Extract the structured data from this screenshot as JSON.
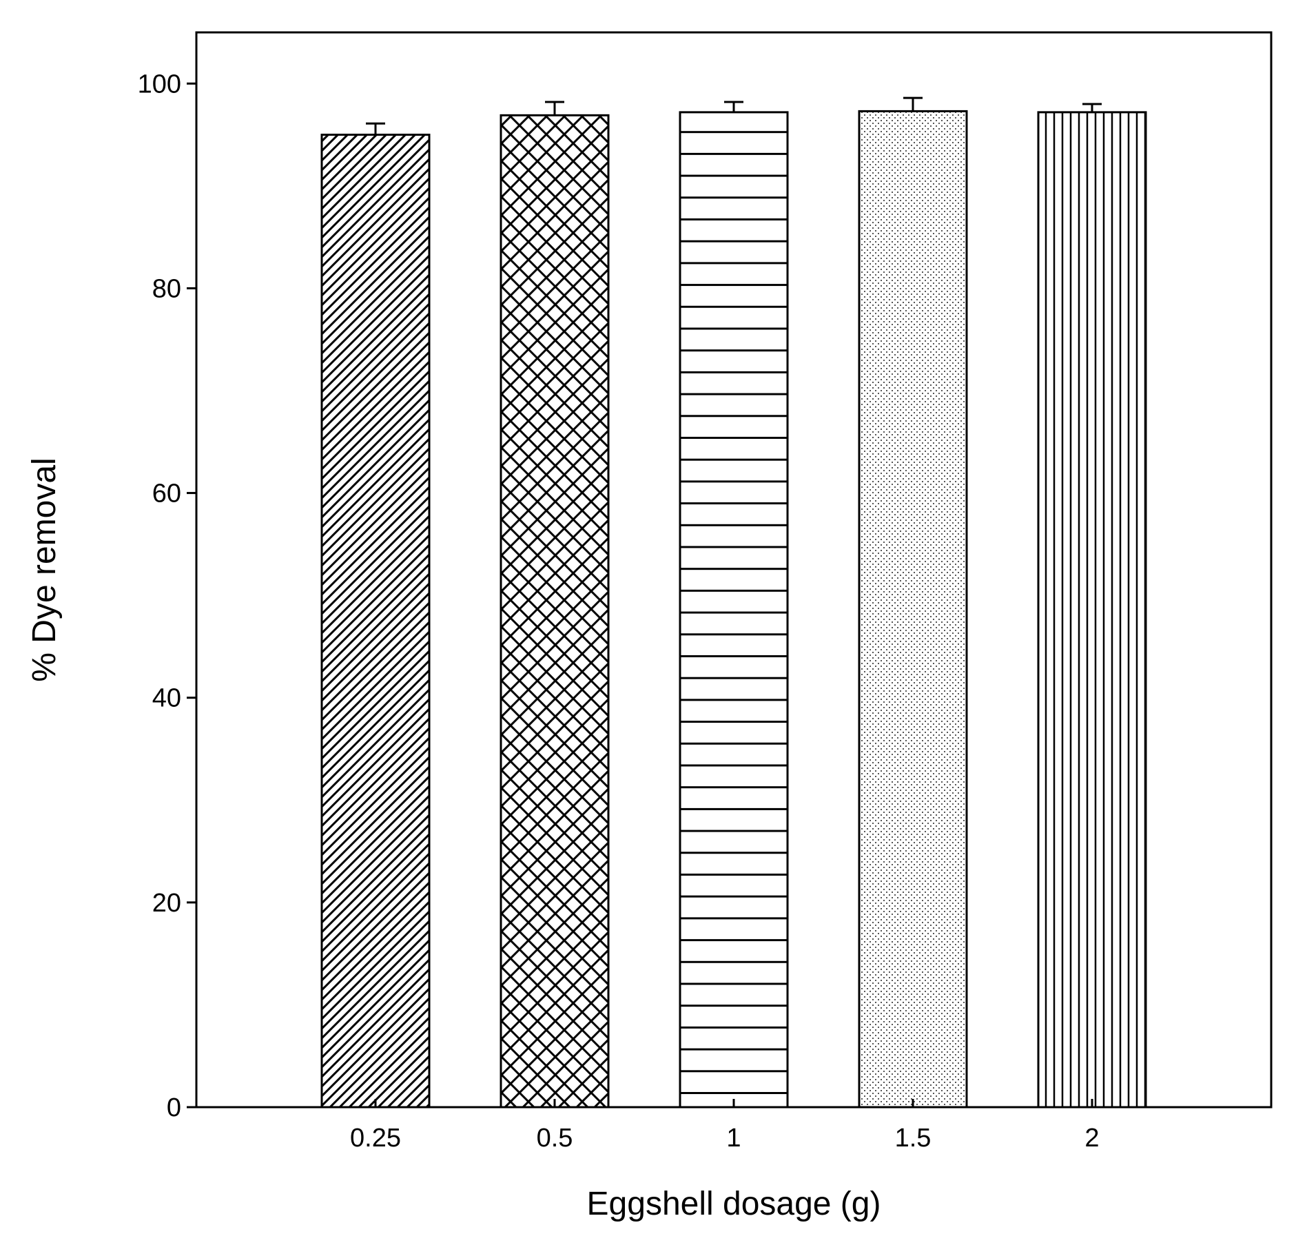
{
  "chart_data": {
    "type": "bar",
    "title": "",
    "xlabel": "Eggshell dosage (g)",
    "ylabel": "% Dye removal",
    "categories": [
      "0.25",
      "0.5",
      "1",
      "1.5",
      "2"
    ],
    "values": [
      95.0,
      96.9,
      97.2,
      97.3,
      97.2
    ],
    "errors": [
      1.1,
      1.3,
      1.0,
      1.3,
      0.8
    ],
    "patterns": [
      "diagonal-hatch",
      "crosshatch",
      "horizontal-lines",
      "dots",
      "vertical-lines"
    ],
    "ylim": [
      0,
      105
    ],
    "yticks": [
      "0",
      "20",
      "40",
      "60",
      "80",
      "100"
    ],
    "grid": false,
    "legend": "none",
    "colors": {
      "stroke": "#000000",
      "fill": "#ffffff"
    }
  }
}
